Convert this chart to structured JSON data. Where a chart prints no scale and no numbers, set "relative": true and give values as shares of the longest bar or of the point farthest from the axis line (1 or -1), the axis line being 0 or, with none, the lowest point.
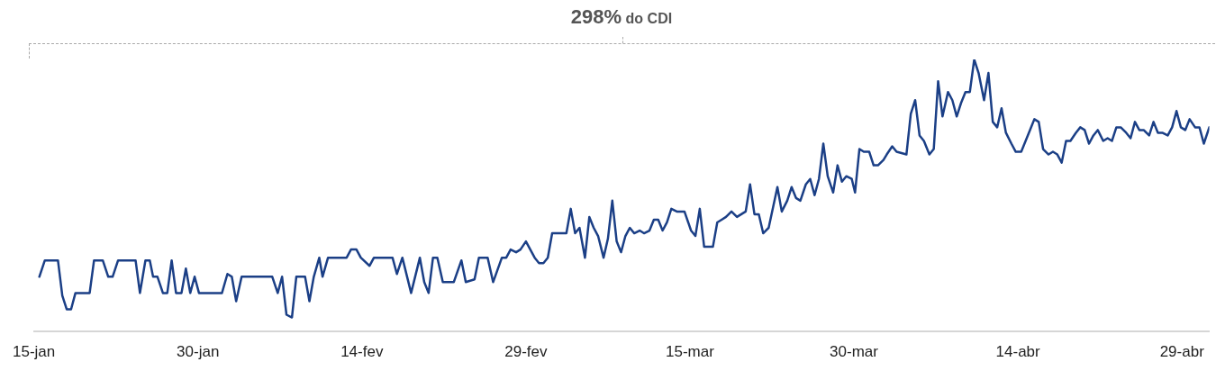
{
  "chart_data": {
    "type": "line",
    "relative": true,
    "annotations": [
      "298% do CDI"
    ],
    "grid": false,
    "marker": "none",
    "line_style": "solid",
    "xlim": [
      "--01-15",
      "--05-01T12:00"
    ],
    "xticks": [
      {
        "value": "--01-15",
        "label": "15-jan"
      },
      {
        "value": "--01-30",
        "label": "30-jan"
      },
      {
        "value": "--02-14",
        "label": "14-fev"
      },
      {
        "value": "--02-29",
        "label": "29-fev"
      },
      {
        "value": "--03-15",
        "label": "15-mar"
      },
      {
        "value": "--03-30",
        "label": "30-mar"
      },
      {
        "value": "--04-14",
        "label": "14-abr"
      },
      {
        "value": "--04-29",
        "label": "29-abr"
      }
    ],
    "series": [
      {
        "color": "#1b3f86",
        "x": [
          "--01-15T12:00",
          "--01-16T00:00",
          "--01-17T04:48",
          "--01-17T14:24",
          "--01-18T00:00",
          "--01-18T09:36",
          "--01-18T19:12",
          "--01-20T02:24",
          "--01-20T12:00",
          "--01-21T07:12",
          "--01-21T19:12",
          "--01-22T04:48",
          "--01-22T16:48",
          "--01-24T07:12",
          "--01-24T16:48",
          "--01-25T04:48",
          "--01-25T14:24",
          "--01-25T21:36",
          "--01-26T07:12",
          "--01-26T19:12",
          "--01-27T04:48",
          "--01-27T14:24",
          "--01-28T00:00",
          "--01-28T12:00",
          "--01-28T21:36",
          "--01-29T07:12",
          "--01-29T16:48",
          "--01-30T02:24",
          "--02-01T04:48",
          "--02-01T16:48",
          "--02-02T02:24",
          "--02-02T12:00",
          "--02-03T00:00",
          "--02-05T19:12",
          "--02-06T07:12",
          "--02-06T16:48",
          "--02-07T02:24",
          "--02-07T14:24",
          "--02-08T00:00",
          "--02-08T19:12",
          "--02-09T04:48",
          "--02-09T14:24",
          "--02-10T02:24",
          "--02-10T09:36",
          "--02-10T21:36",
          "--02-12T14:24",
          "--02-13T00:00",
          "--02-13T12:00",
          "--02-13T21:36",
          "--02-14T16:48",
          "--02-15T02:24",
          "--02-16T19:12",
          "--02-17T04:48",
          "--02-17T16:48",
          "--02-18T12:00",
          "--02-19T07:12",
          "--02-19T16:48",
          "--02-20T02:24",
          "--02-20T12:00",
          "--02-20T21:36",
          "--02-21T09:36",
          "--02-22T09:36",
          "--02-23T02:24",
          "--02-23T12:00",
          "--02-24T07:12",
          "--02-24T16:48",
          "--02-25T12:00",
          "--02-26T00:00",
          "--02-26T19:12",
          "--02-27T04:48",
          "--02-27T14:24",
          "--02-28T02:24",
          "--02-28T12:00",
          "--02-29T00:00",
          "--02-29T19:12",
          "--03-01T04:48",
          "--03-01T14:24",
          "--03-02T00:00",
          "--03-02T09:36",
          "--03-03T00:00",
          "--03-03T16:48",
          "--03-04T02:24",
          "--03-04T12:00",
          "--03-04T21:36",
          "--03-05T09:36",
          "--03-05T19:12",
          "--03-06T04:48",
          "--03-06T14:24",
          "--03-07T02:24",
          "--03-07T12:00",
          "--03-07T21:36",
          "--03-08T07:12",
          "--03-08T16:48",
          "--03-09T02:24",
          "--03-09T12:00",
          "--03-09T21:36",
          "--03-10T09:36",
          "--03-10T19:12",
          "--03-11T07:12",
          "--03-11T16:48",
          "--03-12T02:24",
          "--03-12T12:00",
          "--03-12T21:36",
          "--03-13T07:12",
          "--03-13T19:12",
          "--03-14T12:00",
          "--03-15T02:24",
          "--03-15T12:00",
          "--03-15T21:36",
          "--03-16T07:12",
          "--03-17T02:24",
          "--03-17T12:00",
          "--03-17T21:36",
          "--03-18T07:12",
          "--03-18T19:12",
          "--03-19T07:12",
          "--03-19T16:48",
          "--03-20T02:24",
          "--03-20T12:00",
          "--03-20T21:36",
          "--03-21T07:12",
          "--03-21T16:48",
          "--03-22T04:48",
          "--03-23T00:00",
          "--03-23T09:36",
          "--03-23T21:36",
          "--03-24T07:12",
          "--03-24T16:48",
          "--03-25T02:24",
          "--03-25T14:24",
          "--03-26T00:00",
          "--03-26T09:36",
          "--03-26T19:12",
          "--03-27T04:48",
          "--03-27T14:24",
          "--03-28T02:24",
          "--03-28T12:00",
          "--03-28T21:36",
          "--03-29T07:12",
          "--03-29T19:12",
          "--03-30T02:24",
          "--03-30T12:00",
          "--03-30T21:36",
          "--03-31T09:36",
          "--03-31T19:12",
          "--04-01T04:48",
          "--04-01T16:48",
          "--04-02T00:00",
          "--04-02T12:00",
          "--04-02T21:36",
          "--04-03T19:12",
          "--04-04T04:48",
          "--04-04T14:24",
          "--04-05T00:00",
          "--04-05T09:36",
          "--04-05T21:36",
          "--04-06T07:12",
          "--04-06T16:48",
          "--04-07T02:24",
          "--04-07T14:24",
          "--04-08T00:00",
          "--04-08T09:36",
          "--04-08T19:12",
          "--04-09T04:48",
          "--04-09T14:24",
          "--04-10T00:00",
          "--04-10T09:36",
          "--04-10T21:36",
          "--04-11T07:12",
          "--04-11T16:48",
          "--04-12T02:24",
          "--04-12T12:00",
          "--04-12T21:36",
          "--04-13T09:36",
          "--04-13T19:12",
          "--04-14T07:12",
          "--04-14T16:48",
          "--04-15T02:24",
          "--04-15T12:00",
          "--04-15T21:36",
          "--04-16T07:12",
          "--04-16T19:12",
          "--04-17T04:48",
          "--04-17T14:24",
          "--04-18T00:00",
          "--04-18T09:36",
          "--04-18T19:12",
          "--04-19T07:12",
          "--04-19T16:48",
          "--04-20T02:24",
          "--04-20T12:00",
          "--04-20T21:36",
          "--04-21T07:12",
          "--04-21T19:12",
          "--04-22T04:48",
          "--04-22T14:24",
          "--04-23T00:00",
          "--04-23T09:36",
          "--04-23T21:36",
          "--04-24T07:12",
          "--04-24T16:48",
          "--04-25T02:24",
          "--04-25T12:00",
          "--04-26T00:00",
          "--04-26T09:36",
          "--04-26T19:12",
          "--04-27T04:48",
          "--04-27T16:48",
          "--04-28T02:24",
          "--04-28T12:00",
          "--04-28T21:36",
          "--04-29T07:12",
          "--04-29T16:48",
          "--04-30T04:48",
          "--04-30T14:24",
          "--05-01T00:00",
          "--05-01T12:00"
        ],
        "values": [
          0.2,
          0.26,
          0.26,
          0.13,
          0.08,
          0.08,
          0.14,
          0.14,
          0.26,
          0.26,
          0.2,
          0.2,
          0.26,
          0.26,
          0.14,
          0.26,
          0.26,
          0.2,
          0.2,
          0.14,
          0.14,
          0.26,
          0.14,
          0.14,
          0.23,
          0.14,
          0.2,
          0.14,
          0.14,
          0.21,
          0.2,
          0.11,
          0.2,
          0.2,
          0.14,
          0.2,
          0.06,
          0.05,
          0.2,
          0.2,
          0.11,
          0.2,
          0.27,
          0.2,
          0.27,
          0.27,
          0.3,
          0.3,
          0.27,
          0.24,
          0.27,
          0.27,
          0.21,
          0.27,
          0.14,
          0.27,
          0.18,
          0.14,
          0.27,
          0.27,
          0.18,
          0.18,
          0.26,
          0.18,
          0.19,
          0.27,
          0.27,
          0.18,
          0.27,
          0.27,
          0.3,
          0.29,
          0.3,
          0.33,
          0.27,
          0.25,
          0.25,
          0.27,
          0.36,
          0.36,
          0.36,
          0.45,
          0.36,
          0.38,
          0.27,
          0.42,
          0.38,
          0.35,
          0.27,
          0.34,
          0.48,
          0.33,
          0.29,
          0.35,
          0.38,
          0.36,
          0.37,
          0.36,
          0.37,
          0.41,
          0.41,
          0.37,
          0.4,
          0.45,
          0.44,
          0.44,
          0.37,
          0.35,
          0.45,
          0.31,
          0.31,
          0.4,
          0.41,
          0.42,
          0.44,
          0.42,
          0.43,
          0.44,
          0.54,
          0.43,
          0.43,
          0.36,
          0.38,
          0.53,
          0.44,
          0.48,
          0.53,
          0.49,
          0.48,
          0.54,
          0.56,
          0.5,
          0.56,
          0.69,
          0.57,
          0.51,
          0.61,
          0.55,
          0.57,
          0.56,
          0.51,
          0.67,
          0.66,
          0.66,
          0.61,
          0.61,
          0.63,
          0.65,
          0.68,
          0.66,
          0.65,
          0.8,
          0.85,
          0.72,
          0.7,
          0.65,
          0.67,
          0.92,
          0.79,
          0.88,
          0.85,
          0.79,
          0.84,
          0.88,
          0.88,
          1.0,
          0.95,
          0.85,
          0.95,
          0.77,
          0.75,
          0.82,
          0.73,
          0.69,
          0.66,
          0.66,
          0.7,
          0.74,
          0.78,
          0.77,
          0.67,
          0.65,
          0.66,
          0.65,
          0.62,
          0.7,
          0.7,
          0.73,
          0.75,
          0.74,
          0.69,
          0.72,
          0.74,
          0.7,
          0.71,
          0.7,
          0.75,
          0.75,
          0.73,
          0.71,
          0.77,
          0.74,
          0.74,
          0.72,
          0.77,
          0.73,
          0.73,
          0.72,
          0.75,
          0.81,
          0.75,
          0.74,
          0.78,
          0.75,
          0.75,
          0.69,
          0.75
        ]
      }
    ]
  }
}
